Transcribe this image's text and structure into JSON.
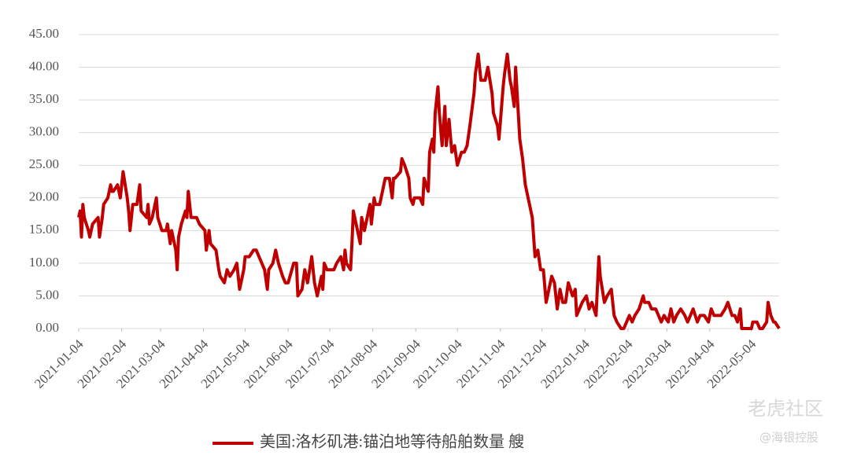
{
  "chart_data": {
    "type": "line",
    "x": [
      "2021-01-04",
      "2021-01-05",
      "2021-01-06",
      "2021-01-07",
      "2021-01-08",
      "2021-01-11",
      "2021-01-12",
      "2021-01-14",
      "2021-01-18",
      "2021-01-19",
      "2021-01-21",
      "2021-01-22",
      "2021-01-25",
      "2021-01-27",
      "2021-01-28",
      "2021-01-29",
      "2021-02-01",
      "2021-02-03",
      "2021-02-05",
      "2021-02-08",
      "2021-02-09",
      "2021-02-10",
      "2021-02-12",
      "2021-02-15",
      "2021-02-17",
      "2021-02-18",
      "2021-02-22",
      "2021-02-23",
      "2021-02-24",
      "2021-02-26",
      "2021-03-01",
      "2021-03-02",
      "2021-03-05",
      "2021-03-08",
      "2021-03-09",
      "2021-03-11",
      "2021-03-12",
      "2021-03-15",
      "2021-03-16",
      "2021-03-17",
      "2021-03-19",
      "2021-03-22",
      "2021-03-23",
      "2021-03-24",
      "2021-03-26",
      "2021-03-30",
      "2021-04-01",
      "2021-04-05",
      "2021-04-06",
      "2021-04-08",
      "2021-04-09",
      "2021-04-13",
      "2021-04-15",
      "2021-04-16",
      "2021-04-19",
      "2021-04-21",
      "2021-04-23",
      "2021-04-26",
      "2021-04-28",
      "2021-04-30",
      "2021-05-03",
      "2021-05-04",
      "2021-05-07",
      "2021-05-10",
      "2021-05-12",
      "2021-05-14",
      "2021-05-18",
      "2021-05-20",
      "2021-05-21",
      "2021-05-24",
      "2021-05-26",
      "2021-05-28",
      "2021-05-31",
      "2021-06-02",
      "2021-06-04",
      "2021-06-08",
      "2021-06-10",
      "2021-06-11",
      "2021-06-14",
      "2021-06-16",
      "2021-06-18",
      "2021-06-21",
      "2021-06-23",
      "2021-06-25",
      "2021-06-28",
      "2021-06-29",
      "2021-06-30",
      "2021-07-02",
      "2021-07-07",
      "2021-07-09",
      "2021-07-12",
      "2021-07-14",
      "2021-07-15",
      "2021-07-16",
      "2021-07-19",
      "2021-07-20",
      "2021-07-21",
      "2021-07-23",
      "2021-07-26",
      "2021-07-27",
      "2021-07-29",
      "2021-08-02",
      "2021-08-03",
      "2021-08-05",
      "2021-08-06",
      "2021-08-09",
      "2021-08-11",
      "2021-08-13",
      "2021-08-16",
      "2021-08-18",
      "2021-08-19",
      "2021-08-20",
      "2021-08-24",
      "2021-08-25",
      "2021-08-27",
      "2021-08-30",
      "2021-08-31",
      "2021-09-02",
      "2021-09-03",
      "2021-09-07",
      "2021-09-09",
      "2021-09-10",
      "2021-09-13",
      "2021-09-14",
      "2021-09-16",
      "2021-09-17",
      "2021-09-18",
      "2021-09-20",
      "2021-09-21",
      "2021-09-23",
      "2021-09-25",
      "2021-09-26",
      "2021-09-28",
      "2021-09-30",
      "2021-10-02",
      "2021-10-04",
      "2021-10-07",
      "2021-10-09",
      "2021-10-11",
      "2021-10-13",
      "2021-10-16",
      "2021-10-17",
      "2021-10-19",
      "2021-10-21",
      "2021-10-24",
      "2021-10-26",
      "2021-10-29",
      "2021-10-30",
      "2021-11-02",
      "2021-11-03",
      "2021-11-06",
      "2021-11-07",
      "2021-11-09",
      "2021-11-11",
      "2021-11-12",
      "2021-11-14",
      "2021-11-15",
      "2021-11-18",
      "2021-11-20",
      "2021-11-22",
      "2021-11-24",
      "2021-11-27",
      "2021-11-29",
      "2021-12-01",
      "2021-12-03",
      "2021-12-05",
      "2021-12-07",
      "2021-12-09",
      "2021-12-11",
      "2021-12-13",
      "2021-12-15",
      "2021-12-17",
      "2021-12-19",
      "2021-12-21",
      "2021-12-23",
      "2021-12-26",
      "2021-12-28",
      "2021-12-29",
      "2021-12-31",
      "2022-01-02",
      "2022-01-05",
      "2022-01-07",
      "2022-01-09",
      "2022-01-12",
      "2022-01-14",
      "2022-01-15",
      "2022-01-18",
      "2022-01-20",
      "2022-01-23",
      "2022-01-25",
      "2022-01-27",
      "2022-01-30",
      "2022-02-01",
      "2022-02-03",
      "2022-02-05",
      "2022-02-07",
      "2022-02-09",
      "2022-02-12",
      "2022-02-15",
      "2022-02-16",
      "2022-02-19",
      "2022-02-21",
      "2022-02-24",
      "2022-02-26",
      "2022-02-28",
      "2022-03-02",
      "2022-03-05",
      "2022-03-07",
      "2022-03-09",
      "2022-03-11",
      "2022-03-14",
      "2022-03-17",
      "2022-03-19",
      "2022-03-21",
      "2022-03-23",
      "2022-03-26",
      "2022-03-28",
      "2022-03-31",
      "2022-04-03",
      "2022-04-05",
      "2022-04-07",
      "2022-04-10",
      "2022-04-12",
      "2022-04-15",
      "2022-04-17",
      "2022-04-20",
      "2022-04-22",
      "2022-04-24",
      "2022-04-26",
      "2022-04-27",
      "2022-05-01",
      "2022-05-04",
      "2022-05-05",
      "2022-05-08",
      "2022-05-10",
      "2022-05-12",
      "2022-05-15",
      "2022-05-16",
      "2022-05-18",
      "2022-05-20",
      "2022-05-21",
      "2022-05-24"
    ],
    "series": [
      {
        "name": "美国:洛杉矶港:锚泊地等待船舶数量 艘",
        "color": "#c00000",
        "values": [
          17,
          18,
          14,
          19,
          17,
          15,
          14,
          16,
          17,
          14,
          17,
          19,
          20,
          22,
          21,
          21,
          22,
          20,
          24,
          20,
          18,
          15,
          19,
          19,
          22,
          18,
          17,
          19,
          16,
          17,
          20,
          17,
          15,
          15,
          16,
          13,
          15,
          12,
          9,
          14,
          16,
          18,
          17,
          21,
          17,
          17,
          16,
          15,
          12,
          15,
          13,
          12,
          9,
          8,
          7,
          9,
          8,
          9,
          10,
          6,
          9,
          11,
          11,
          12,
          12,
          11,
          9,
          6,
          9,
          10,
          12,
          10,
          8,
          7,
          7,
          10,
          10,
          5,
          6,
          9,
          7,
          11,
          7,
          5,
          8,
          6,
          10,
          9,
          9,
          10,
          11,
          9,
          12,
          10,
          9,
          13,
          18,
          16,
          13,
          17,
          15,
          19,
          16,
          20,
          19,
          19,
          21,
          23,
          23,
          20,
          23,
          23,
          24,
          26,
          25,
          23,
          20,
          19,
          20,
          20,
          19,
          23,
          21,
          27,
          29,
          27,
          33,
          37,
          33,
          28,
          34,
          28,
          32,
          27,
          28,
          25,
          27,
          27,
          28,
          31,
          36,
          39,
          42,
          38,
          38,
          40,
          36,
          33,
          31,
          29,
          37,
          39,
          42,
          38,
          37,
          34,
          40,
          29,
          26,
          22,
          20,
          17,
          11,
          12,
          9,
          9,
          4,
          6,
          8,
          7,
          3,
          6,
          4,
          4,
          7,
          5,
          6,
          2,
          3,
          4,
          5,
          3,
          4,
          2,
          11,
          8,
          4,
          5,
          6,
          2,
          1,
          0,
          0,
          1,
          2,
          1,
          2,
          3,
          5,
          4,
          4,
          3,
          3,
          2,
          1,
          2,
          1,
          3,
          1,
          2,
          3,
          2,
          1,
          2,
          3,
          1,
          2,
          2,
          1,
          3,
          2,
          2,
          2,
          3,
          4,
          2,
          2,
          1,
          3,
          0,
          0,
          0,
          1,
          1,
          0,
          0,
          1,
          4,
          2,
          1,
          1,
          0
        ]
      }
    ],
    "xticks": [
      "2021-01-04",
      "2021-02-04",
      "2021-03-04",
      "2021-04-04",
      "2021-05-04",
      "2021-06-04",
      "2021-07-04",
      "2021-08-04",
      "2021-09-04",
      "2021-10-04",
      "2021-11-04",
      "2021-12-04",
      "2022-01-04",
      "2022-02-04",
      "2022-03-04",
      "2022-04-04",
      "2022-05-04"
    ],
    "ylim": [
      0,
      45
    ],
    "yticks": [
      {
        "value": 0,
        "label": "0.00"
      },
      {
        "value": 5,
        "label": "5.00"
      },
      {
        "value": 10,
        "label": "10.00"
      },
      {
        "value": 15,
        "label": "15.00"
      },
      {
        "value": 20,
        "label": "20.00"
      },
      {
        "value": 25,
        "label": "25.00"
      },
      {
        "value": 30,
        "label": "30.00"
      },
      {
        "value": 35,
        "label": "35.00"
      },
      {
        "value": 40,
        "label": "40.00"
      },
      {
        "value": 45,
        "label": "45.00"
      }
    ],
    "grid": true,
    "legend": "bottom",
    "watermark": [
      "老虎社区",
      "@海银控股"
    ]
  }
}
